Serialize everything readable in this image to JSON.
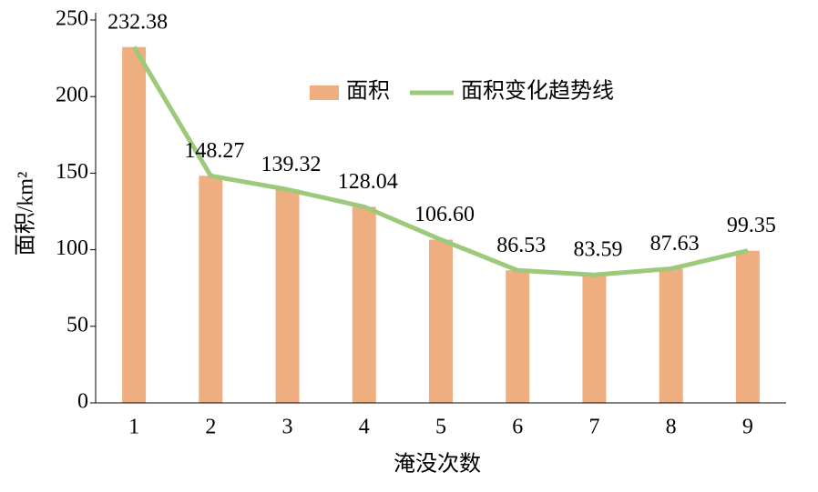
{
  "chart_data": {
    "type": "bar",
    "categories": [
      "1",
      "2",
      "3",
      "4",
      "5",
      "6",
      "7",
      "8",
      "9"
    ],
    "series": [
      {
        "name": "面积",
        "type": "bar",
        "color": "#efae80",
        "values": [
          232.38,
          148.27,
          139.32,
          128.04,
          106.6,
          86.53,
          83.59,
          87.63,
          99.35
        ],
        "value_labels": [
          "232.38",
          "148.27",
          "139.32",
          "128.04",
          "106.60",
          "86.53",
          "83.59",
          "87.63",
          "99.35"
        ]
      },
      {
        "name": "面积变化趋势线",
        "type": "line",
        "color": "#9cc97a",
        "values": [
          232.38,
          148.27,
          139.32,
          128.04,
          106.6,
          86.53,
          83.59,
          87.63,
          99.35
        ]
      }
    ],
    "ylim": [
      0,
      250
    ],
    "yticks": [
      0,
      50,
      100,
      150,
      200,
      250
    ],
    "y_label": "面积/km²",
    "x_label": "淹没次数",
    "legend": "top-center"
  }
}
